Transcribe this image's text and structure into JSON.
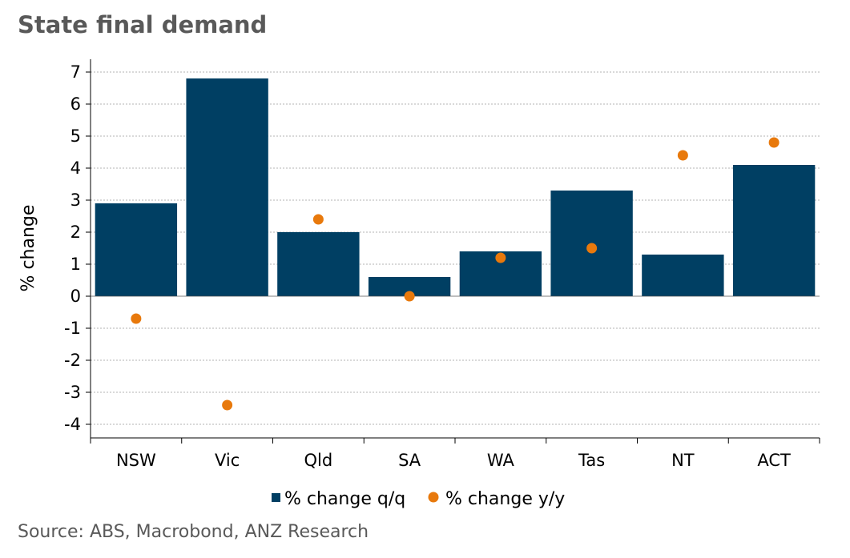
{
  "title": "State final demand",
  "source": "Source: ABS, Macrobond, ANZ Research",
  "colors": {
    "bar": "#003f63",
    "dot": "#e8790c",
    "grid": "#9a9a9a",
    "title": "#595959"
  },
  "chart_data": {
    "type": "bar",
    "title": "State final demand",
    "ylabel": "% change",
    "xlabel": "",
    "ylim": [
      -4,
      7
    ],
    "yticks": [
      7,
      6,
      5,
      4,
      3,
      2,
      1,
      0,
      -1,
      -2,
      -3,
      -4
    ],
    "grid": true,
    "legend_position": "bottom",
    "categories": [
      "NSW",
      "Vic",
      "Qld",
      "SA",
      "WA",
      "Tas",
      "NT",
      "ACT"
    ],
    "series": [
      {
        "name": "% change q/q",
        "type": "bar",
        "color": "#003f63",
        "values": [
          2.9,
          6.8,
          2.0,
          0.6,
          1.4,
          3.3,
          1.3,
          4.1
        ]
      },
      {
        "name": "% change y/y",
        "type": "scatter",
        "color": "#e8790c",
        "values": [
          -0.7,
          -3.4,
          2.4,
          0.0,
          1.2,
          1.5,
          4.4,
          4.8
        ]
      }
    ]
  }
}
